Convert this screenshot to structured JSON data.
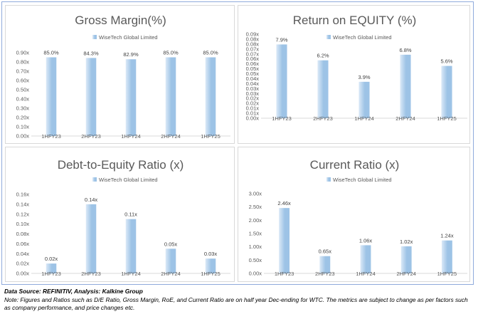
{
  "bar_color": "#9dc3e6",
  "bar_highlight": "#dbe9f7",
  "chart_data": [
    {
      "type": "bar",
      "title": "Gross Margin(%)",
      "categories": [
        "1HFY23",
        "2HFY23",
        "1HFY24",
        "2HFY24",
        "1HFY25"
      ],
      "series": [
        {
          "name": "WiseTech Global Limited",
          "values": [
            0.85,
            0.843,
            0.829,
            0.85,
            0.85
          ]
        }
      ],
      "data_labels": [
        "85.0%",
        "84.3%",
        "82.9%",
        "85.0%",
        "85.0%"
      ],
      "yticks": [
        "0.00x",
        "0.10x",
        "0.20x",
        "0.30x",
        "0.40x",
        "0.50x",
        "0.60x",
        "0.70x",
        "0.80x",
        "0.90x"
      ],
      "ylim": [
        0,
        0.9
      ],
      "legend_position": "top",
      "grid": false
    },
    {
      "type": "bar",
      "title": "Return on EQUITY (%)",
      "categories": [
        "1HFY23",
        "2HFY23",
        "1HFY24",
        "2HFY24",
        "1HFY25"
      ],
      "series": [
        {
          "name": "WiseTech Global Limited",
          "values": [
            0.079,
            0.062,
            0.039,
            0.068,
            0.056
          ]
        }
      ],
      "data_labels": [
        "7.9%",
        "6.2%",
        "3.9%",
        "6.8%",
        "5.6%"
      ],
      "yticks": [
        "0.00x",
        "0.01x",
        "0.01x",
        "0.02x",
        "0.02x",
        "0.03x",
        "0.03x",
        "0.04x",
        "0.04x",
        "0.05x",
        "0.05x",
        "0.06x",
        "0.06x",
        "0.07x",
        "0.07x",
        "0.08x",
        "0.08x",
        "0.09x"
      ],
      "ylim": [
        0,
        0.09
      ],
      "legend_position": "top",
      "grid": false
    },
    {
      "type": "bar",
      "title": "Debt-to-Equity  Ratio (x)",
      "categories": [
        "1HFY23",
        "2HFY23",
        "1HFY24",
        "2HFY24",
        "1HFY25"
      ],
      "series": [
        {
          "name": "WiseTech Global Limited",
          "values": [
            0.02,
            0.14,
            0.11,
            0.05,
            0.03
          ]
        }
      ],
      "data_labels": [
        "0.02x",
        "0.14x",
        "0.11x",
        "0.05x",
        "0.03x"
      ],
      "yticks": [
        "0.00x",
        "0.02x",
        "0.04x",
        "0.06x",
        "0.08x",
        "0.10x",
        "0.12x",
        "0.14x",
        "0.16x"
      ],
      "ylim": [
        0,
        0.16
      ],
      "legend_position": "top",
      "grid": false
    },
    {
      "type": "bar",
      "title": "Current Ratio (x)",
      "categories": [
        "1HFY23",
        "2HFY23",
        "1HFY24",
        "2HFY24",
        "1HFY25"
      ],
      "series": [
        {
          "name": "WiseTech Global Limited",
          "values": [
            2.46,
            0.65,
            1.06,
            1.02,
            1.24
          ]
        }
      ],
      "data_labels": [
        "2.46x",
        "0.65x",
        "1.06x",
        "1.02x",
        "1.24x"
      ],
      "yticks": [
        "0.00x",
        "0.50x",
        "1.00x",
        "1.50x",
        "2.00x",
        "2.50x",
        "3.00x"
      ],
      "ylim": [
        0,
        3.0
      ],
      "legend_position": "top",
      "grid": false
    }
  ],
  "footer": {
    "source": "Data Source: REFINITIV, Analysis: Kalkine Group",
    "note": "Note: Figures and Ratios such as D/E Ratio, Gross Margin, RoE, and Current Ratio are on half year Dec-ending for WTC. The metrics are subject to change as per factors such as company performance, and price changes etc."
  }
}
